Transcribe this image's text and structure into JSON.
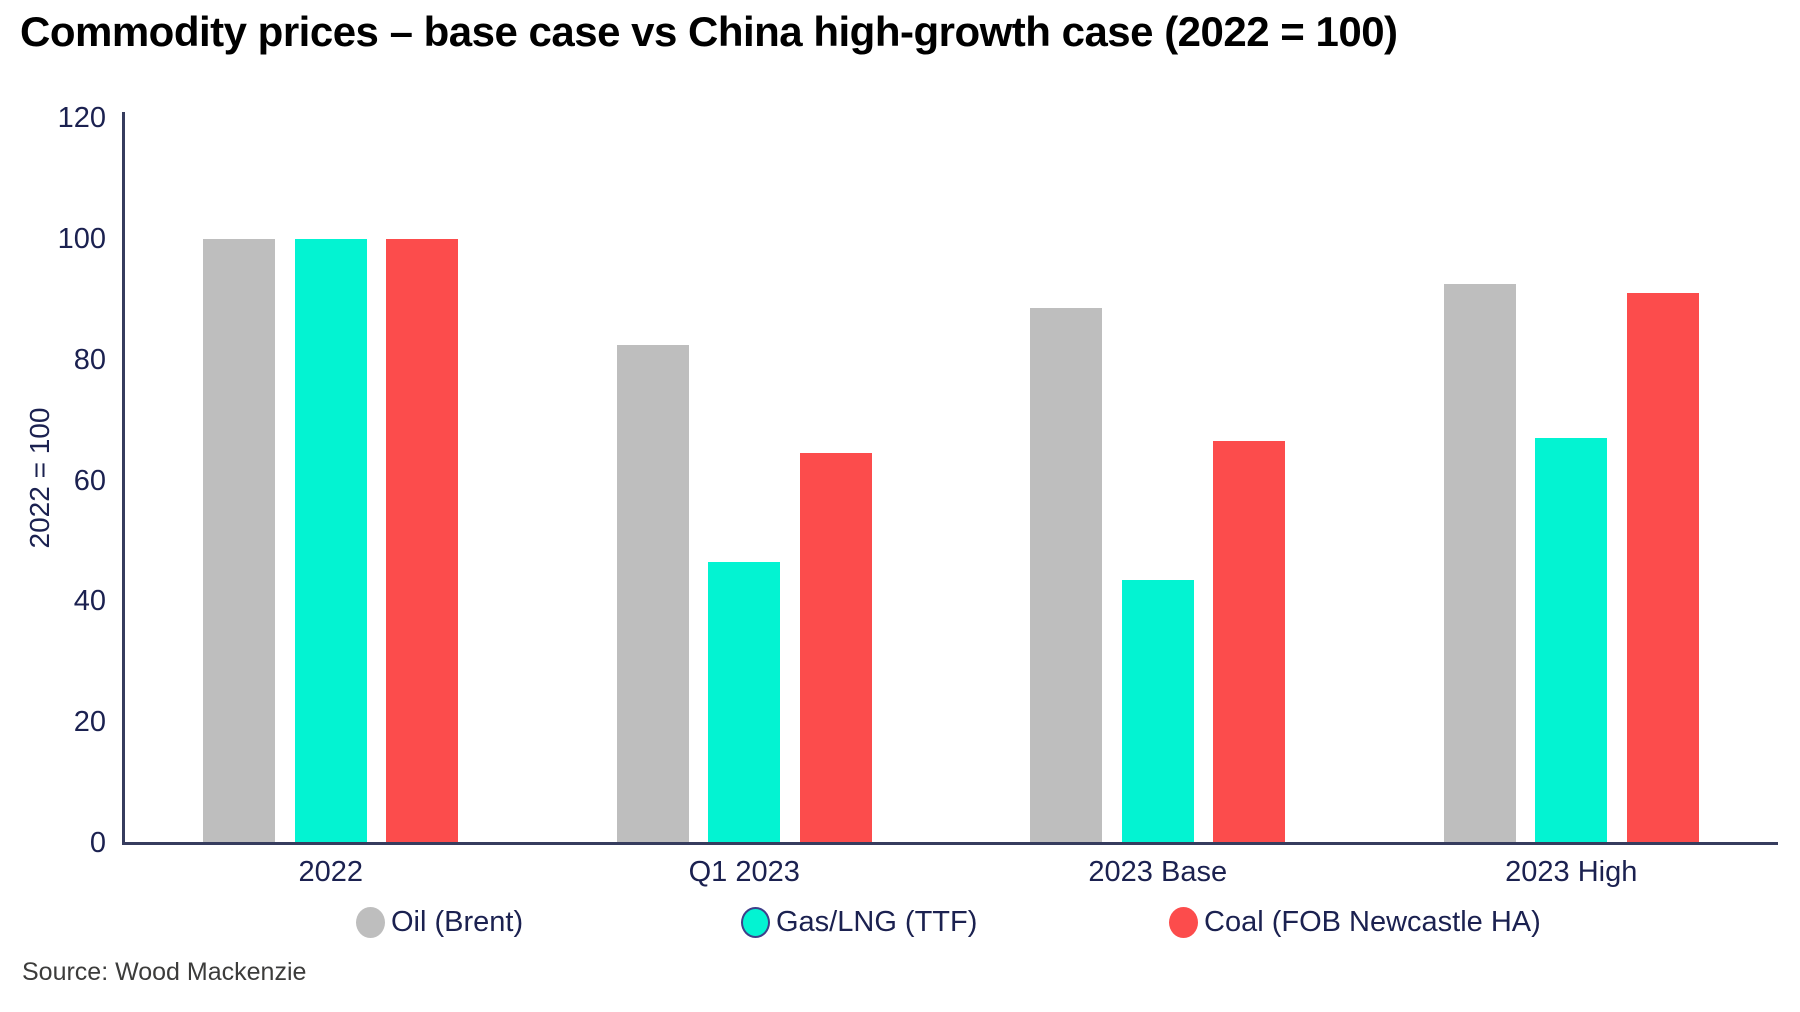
{
  "title": "Commodity prices – base case vs China high-growth case (2022 = 100)",
  "source": "Source: Wood Mackenzie",
  "chart_data": {
    "type": "bar",
    "title": "Commodity prices – base case vs China high-growth case (2022 = 100)",
    "categories": [
      "2022",
      "Q1 2023",
      "2023 Base",
      "2023 High"
    ],
    "series": [
      {
        "name": "Oil (Brent)",
        "color": "#BEBEBE",
        "values": [
          100,
          82.5,
          88.5,
          92.5
        ]
      },
      {
        "name": "Gas/LNG (TTF)",
        "color": "#03F3D2",
        "values": [
          100,
          46.5,
          43.5,
          67
        ]
      },
      {
        "name": "Coal (FOB Newcastle HA)",
        "color": "#FC4C4C",
        "values": [
          100,
          64.5,
          66.5,
          91
        ]
      }
    ],
    "xlabel": "",
    "ylabel": "2022 = 100",
    "ylim": [
      0,
      120
    ],
    "yticks": [
      0,
      20,
      40,
      60,
      80,
      100,
      120
    ],
    "grid": false,
    "legend_position": "bottom"
  },
  "colors": {
    "axis": "#363C5E",
    "tick_text": "#1B2150",
    "title_text": "#000000",
    "source_text": "#3C3C3B",
    "background": "#FFFFFF"
  }
}
